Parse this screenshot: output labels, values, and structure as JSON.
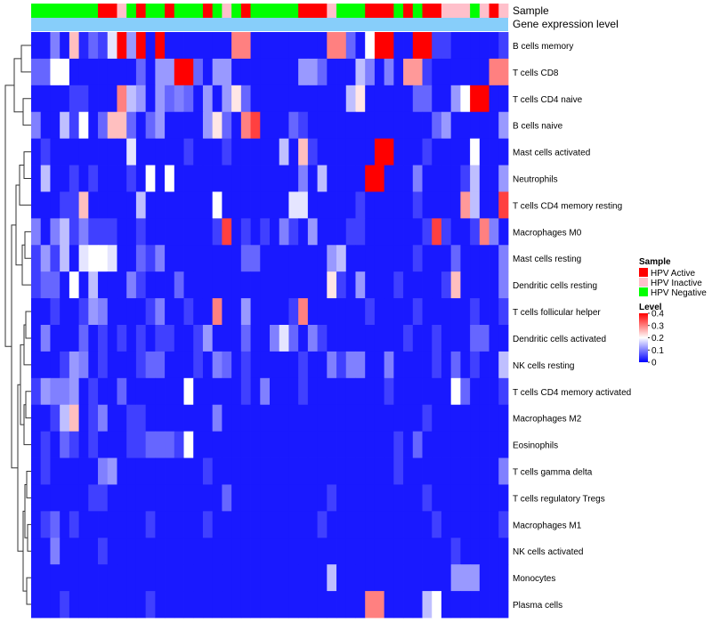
{
  "chart_data": {
    "type": "heatmap",
    "annotation_track_labels": [
      "Sample",
      "Gene expression level"
    ],
    "rows": [
      "B cells memory",
      "T cells CD8",
      "T cells CD4 naive",
      "B cells naive",
      "Mast cells activated",
      "Neutrophils",
      "T cells CD4 memory resting",
      "Macrophages M0",
      "Mast cells resting",
      "Dendritic cells resting",
      "T cells follicular helper",
      "Dendritic cells activated",
      "NK cells resting",
      "T cells CD4 memory activated",
      "Macrophages M2",
      "Eosinophils",
      "T cells gamma delta",
      "T cells regulatory  Tregs",
      "Macrophages M1",
      "NK cells activated",
      "Monocytes",
      "Plasma cells"
    ],
    "sample_groups": [
      "Negative",
      "Negative",
      "Negative",
      "Negative",
      "Negative",
      "Negative",
      "Negative",
      "Active",
      "Active",
      "Inactive",
      "Negative",
      "Active",
      "Negative",
      "Negative",
      "Active",
      "Negative",
      "Negative",
      "Negative",
      "Active",
      "Negative",
      "Inactive",
      "Negative",
      "Active",
      "Negative",
      "Negative",
      "Negative",
      "Negative",
      "Negative",
      "Active",
      "Active",
      "Active",
      "Inactive",
      "Negative",
      "Negative",
      "Negative",
      "Active",
      "Active",
      "Active",
      "Negative",
      "Active",
      "Negative",
      "Active",
      "Active",
      "Inactive",
      "Inactive",
      "Inactive",
      "Negative",
      "Inactive",
      "Active",
      "Inactive"
    ],
    "values": [
      [
        0.02,
        0.02,
        0.1,
        0.02,
        0.25,
        0.03,
        0.08,
        0.05,
        0.18,
        0.4,
        0.12,
        0.4,
        0.02,
        0.4,
        0.02,
        0.02,
        0.02,
        0.02,
        0.02,
        0.02,
        0.02,
        0.3,
        0.3,
        0.02,
        0.02,
        0.02,
        0.02,
        0.02,
        0.02,
        0.02,
        0.02,
        0.3,
        0.3,
        0.08,
        0.02,
        0.2,
        0.4,
        0.4,
        0.02,
        0.02,
        0.4,
        0.4,
        0.05,
        0.05,
        0.02,
        0.02,
        0.02,
        0.02,
        0.02,
        0.05
      ],
      [
        0.08,
        0.08,
        0.2,
        0.2,
        0.02,
        0.02,
        0.02,
        0.02,
        0.02,
        0.02,
        0.02,
        0.08,
        0.02,
        0.12,
        0.12,
        0.4,
        0.4,
        0.08,
        0.02,
        0.12,
        0.12,
        0.02,
        0.02,
        0.02,
        0.02,
        0.02,
        0.02,
        0.02,
        0.12,
        0.12,
        0.08,
        0.02,
        0.02,
        0.02,
        0.15,
        0.1,
        0.02,
        0.1,
        0.02,
        0.28,
        0.28,
        0.05,
        0.02,
        0.02,
        0.02,
        0.02,
        0.02,
        0.02,
        0.3,
        0.3
      ],
      [
        0.02,
        0.02,
        0.02,
        0.02,
        0.05,
        0.05,
        0.02,
        0.02,
        0.02,
        0.3,
        0.15,
        0.12,
        0.02,
        0.12,
        0.08,
        0.1,
        0.08,
        0.02,
        0.12,
        0.02,
        0.12,
        0.22,
        0.08,
        0.02,
        0.02,
        0.02,
        0.02,
        0.02,
        0.02,
        0.02,
        0.02,
        0.02,
        0.02,
        0.15,
        0.22,
        0.02,
        0.02,
        0.02,
        0.02,
        0.02,
        0.08,
        0.08,
        0.02,
        0.02,
        0.12,
        0.2,
        0.4,
        0.4,
        0.02,
        0.02
      ],
      [
        0.1,
        0.02,
        0.02,
        0.15,
        0.05,
        0.2,
        0.02,
        0.08,
        0.25,
        0.25,
        0.08,
        0.02,
        0.08,
        0.12,
        0.02,
        0.02,
        0.02,
        0.02,
        0.12,
        0.22,
        0.08,
        0.02,
        0.3,
        0.35,
        0.02,
        0.02,
        0.02,
        0.08,
        0.05,
        0.02,
        0.02,
        0.02,
        0.02,
        0.02,
        0.02,
        0.02,
        0.02,
        0.02,
        0.02,
        0.02,
        0.02,
        0.02,
        0.08,
        0.12,
        0.02,
        0.02,
        0.02,
        0.02,
        0.02,
        0.12
      ],
      [
        0.02,
        0.05,
        0.02,
        0.02,
        0.02,
        0.02,
        0.02,
        0.02,
        0.02,
        0.02,
        0.18,
        0.02,
        0.02,
        0.02,
        0.02,
        0.02,
        0.05,
        0.02,
        0.02,
        0.02,
        0.05,
        0.02,
        0.02,
        0.02,
        0.02,
        0.02,
        0.15,
        0.02,
        0.25,
        0.05,
        0.02,
        0.02,
        0.02,
        0.02,
        0.02,
        0.02,
        0.4,
        0.4,
        0.02,
        0.02,
        0.02,
        0.05,
        0.02,
        0.02,
        0.02,
        0.02,
        0.2,
        0.02,
        0.02,
        0.02
      ],
      [
        0.02,
        0.15,
        0.02,
        0.02,
        0.05,
        0.02,
        0.05,
        0.02,
        0.02,
        0.02,
        0.05,
        0.02,
        0.2,
        0.02,
        0.2,
        0.02,
        0.02,
        0.02,
        0.02,
        0.02,
        0.02,
        0.02,
        0.02,
        0.02,
        0.02,
        0.02,
        0.02,
        0.02,
        0.1,
        0.02,
        0.15,
        0.02,
        0.02,
        0.02,
        0.02,
        0.4,
        0.4,
        0.02,
        0.02,
        0.02,
        0.1,
        0.02,
        0.02,
        0.02,
        0.02,
        0.05,
        0.15,
        0.02,
        0.02,
        0.12
      ],
      [
        0.02,
        0.02,
        0.02,
        0.05,
        0.05,
        0.25,
        0.02,
        0.02,
        0.02,
        0.02,
        0.02,
        0.15,
        0.02,
        0.02,
        0.02,
        0.02,
        0.02,
        0.02,
        0.02,
        0.2,
        0.02,
        0.02,
        0.02,
        0.02,
        0.02,
        0.02,
        0.02,
        0.18,
        0.18,
        0.02,
        0.02,
        0.02,
        0.02,
        0.02,
        0.05,
        0.02,
        0.02,
        0.02,
        0.02,
        0.02,
        0.05,
        0.02,
        0.02,
        0.02,
        0.02,
        0.28,
        0.15,
        0.02,
        0.02,
        0.35
      ],
      [
        0.1,
        0.02,
        0.1,
        0.15,
        0.05,
        0.1,
        0.05,
        0.05,
        0.05,
        0.02,
        0.02,
        0.05,
        0.02,
        0.02,
        0.02,
        0.02,
        0.02,
        0.02,
        0.02,
        0.05,
        0.35,
        0.02,
        0.05,
        0.02,
        0.05,
        0.02,
        0.1,
        0.05,
        0.02,
        0.12,
        0.02,
        0.02,
        0.02,
        0.05,
        0.05,
        0.02,
        0.02,
        0.02,
        0.02,
        0.02,
        0.02,
        0.05,
        0.35,
        0.05,
        0.02,
        0.02,
        0.05,
        0.3,
        0.1,
        0.02
      ],
      [
        0.05,
        0.12,
        0.05,
        0.15,
        0.02,
        0.18,
        0.2,
        0.2,
        0.18,
        0.02,
        0.02,
        0.08,
        0.05,
        0.1,
        0.02,
        0.02,
        0.02,
        0.02,
        0.02,
        0.02,
        0.02,
        0.02,
        0.08,
        0.08,
        0.02,
        0.02,
        0.02,
        0.02,
        0.02,
        0.02,
        0.02,
        0.12,
        0.15,
        0.02,
        0.02,
        0.02,
        0.02,
        0.02,
        0.02,
        0.02,
        0.05,
        0.02,
        0.02,
        0.02,
        0.08,
        0.02,
        0.02,
        0.02,
        0.02,
        0.1
      ],
      [
        0.05,
        0.08,
        0.08,
        0.02,
        0.2,
        0.02,
        0.15,
        0.02,
        0.02,
        0.02,
        0.1,
        0.05,
        0.02,
        0.02,
        0.02,
        0.08,
        0.02,
        0.02,
        0.02,
        0.02,
        0.02,
        0.02,
        0.02,
        0.02,
        0.02,
        0.02,
        0.02,
        0.02,
        0.02,
        0.02,
        0.02,
        0.22,
        0.05,
        0.02,
        0.12,
        0.02,
        0.02,
        0.02,
        0.05,
        0.02,
        0.02,
        0.02,
        0.02,
        0.05,
        0.25,
        0.02,
        0.02,
        0.02,
        0.02,
        0.1
      ],
      [
        0.02,
        0.02,
        0.05,
        0.02,
        0.02,
        0.05,
        0.12,
        0.1,
        0.02,
        0.02,
        0.02,
        0.02,
        0.05,
        0.1,
        0.02,
        0.02,
        0.05,
        0.02,
        0.02,
        0.3,
        0.02,
        0.02,
        0.12,
        0.02,
        0.02,
        0.02,
        0.02,
        0.05,
        0.3,
        0.02,
        0.02,
        0.02,
        0.02,
        0.02,
        0.02,
        0.05,
        0.02,
        0.02,
        0.02,
        0.02,
        0.05,
        0.02,
        0.02,
        0.02,
        0.02,
        0.02,
        0.05,
        0.02,
        0.02,
        0.05
      ],
      [
        0.02,
        0.1,
        0.02,
        0.02,
        0.02,
        0.08,
        0.02,
        0.05,
        0.02,
        0.05,
        0.02,
        0.05,
        0.02,
        0.05,
        0.05,
        0.02,
        0.02,
        0.05,
        0.12,
        0.02,
        0.02,
        0.02,
        0.08,
        0.02,
        0.02,
        0.1,
        0.18,
        0.08,
        0.02,
        0.1,
        0.05,
        0.02,
        0.02,
        0.02,
        0.02,
        0.02,
        0.02,
        0.02,
        0.02,
        0.05,
        0.02,
        0.02,
        0.05,
        0.02,
        0.02,
        0.02,
        0.08,
        0.08,
        0.02,
        0.02
      ],
      [
        0.02,
        0.02,
        0.02,
        0.05,
        0.12,
        0.1,
        0.02,
        0.05,
        0.02,
        0.02,
        0.02,
        0.05,
        0.08,
        0.08,
        0.02,
        0.02,
        0.02,
        0.05,
        0.02,
        0.1,
        0.08,
        0.02,
        0.05,
        0.02,
        0.02,
        0.02,
        0.02,
        0.02,
        0.05,
        0.02,
        0.02,
        0.1,
        0.05,
        0.1,
        0.1,
        0.02,
        0.02,
        0.1,
        0.02,
        0.02,
        0.02,
        0.02,
        0.05,
        0.02,
        0.08,
        0.02,
        0.05,
        0.02,
        0.02,
        0.15
      ],
      [
        0.05,
        0.12,
        0.1,
        0.1,
        0.12,
        0.02,
        0.05,
        0.02,
        0.02,
        0.08,
        0.02,
        0.02,
        0.02,
        0.02,
        0.02,
        0.02,
        0.2,
        0.02,
        0.02,
        0.02,
        0.02,
        0.02,
        0.05,
        0.02,
        0.1,
        0.02,
        0.02,
        0.02,
        0.05,
        0.02,
        0.02,
        0.02,
        0.02,
        0.02,
        0.02,
        0.02,
        0.02,
        0.05,
        0.02,
        0.02,
        0.02,
        0.02,
        0.02,
        0.02,
        0.2,
        0.08,
        0.02,
        0.02,
        0.02,
        0.05
      ],
      [
        0.02,
        0.02,
        0.05,
        0.15,
        0.25,
        0.02,
        0.05,
        0.1,
        0.02,
        0.02,
        0.05,
        0.05,
        0.02,
        0.02,
        0.02,
        0.02,
        0.02,
        0.02,
        0.02,
        0.1,
        0.02,
        0.02,
        0.02,
        0.02,
        0.02,
        0.02,
        0.02,
        0.02,
        0.02,
        0.02,
        0.02,
        0.02,
        0.02,
        0.02,
        0.02,
        0.02,
        0.02,
        0.02,
        0.02,
        0.02,
        0.02,
        0.05,
        0.02,
        0.02,
        0.02,
        0.02,
        0.02,
        0.02,
        0.02,
        0.02
      ],
      [
        0.02,
        0.05,
        0.02,
        0.08,
        0.05,
        0.02,
        0.05,
        0.02,
        0.02,
        0.02,
        0.05,
        0.05,
        0.08,
        0.08,
        0.08,
        0.05,
        0.2,
        0.02,
        0.02,
        0.02,
        0.02,
        0.02,
        0.02,
        0.02,
        0.02,
        0.02,
        0.02,
        0.02,
        0.02,
        0.02,
        0.02,
        0.02,
        0.02,
        0.02,
        0.02,
        0.02,
        0.02,
        0.02,
        0.05,
        0.02,
        0.08,
        0.02,
        0.02,
        0.02,
        0.02,
        0.02,
        0.02,
        0.02,
        0.02,
        0.02
      ],
      [
        0.02,
        0.05,
        0.02,
        0.02,
        0.02,
        0.02,
        0.02,
        0.1,
        0.12,
        0.02,
        0.02,
        0.02,
        0.02,
        0.02,
        0.02,
        0.02,
        0.02,
        0.02,
        0.05,
        0.02,
        0.02,
        0.02,
        0.02,
        0.02,
        0.02,
        0.02,
        0.02,
        0.02,
        0.02,
        0.02,
        0.02,
        0.02,
        0.02,
        0.02,
        0.02,
        0.02,
        0.02,
        0.02,
        0.05,
        0.02,
        0.02,
        0.02,
        0.02,
        0.02,
        0.02,
        0.02,
        0.02,
        0.02,
        0.02,
        0.1
      ],
      [
        0.02,
        0.02,
        0.02,
        0.02,
        0.02,
        0.02,
        0.05,
        0.05,
        0.02,
        0.02,
        0.02,
        0.02,
        0.02,
        0.02,
        0.02,
        0.02,
        0.02,
        0.02,
        0.02,
        0.02,
        0.08,
        0.02,
        0.02,
        0.02,
        0.02,
        0.02,
        0.02,
        0.02,
        0.02,
        0.02,
        0.02,
        0.05,
        0.02,
        0.02,
        0.02,
        0.02,
        0.02,
        0.02,
        0.02,
        0.02,
        0.02,
        0.05,
        0.02,
        0.02,
        0.02,
        0.02,
        0.02,
        0.02,
        0.02,
        0.02
      ],
      [
        0.02,
        0.05,
        0.08,
        0.02,
        0.05,
        0.02,
        0.02,
        0.02,
        0.02,
        0.02,
        0.02,
        0.02,
        0.05,
        0.02,
        0.02,
        0.02,
        0.02,
        0.02,
        0.05,
        0.02,
        0.02,
        0.02,
        0.02,
        0.02,
        0.02,
        0.02,
        0.02,
        0.02,
        0.02,
        0.02,
        0.05,
        0.02,
        0.02,
        0.02,
        0.02,
        0.02,
        0.02,
        0.02,
        0.02,
        0.02,
        0.02,
        0.02,
        0.05,
        0.02,
        0.02,
        0.02,
        0.02,
        0.02,
        0.02,
        0.05
      ],
      [
        0.02,
        0.02,
        0.1,
        0.02,
        0.02,
        0.02,
        0.02,
        0.05,
        0.02,
        0.02,
        0.02,
        0.02,
        0.02,
        0.02,
        0.02,
        0.02,
        0.02,
        0.02,
        0.02,
        0.02,
        0.02,
        0.02,
        0.02,
        0.02,
        0.02,
        0.02,
        0.02,
        0.02,
        0.02,
        0.02,
        0.02,
        0.02,
        0.02,
        0.02,
        0.02,
        0.02,
        0.02,
        0.02,
        0.02,
        0.02,
        0.02,
        0.02,
        0.02,
        0.02,
        0.05,
        0.02,
        0.02,
        0.02,
        0.02,
        0.02
      ],
      [
        0.02,
        0.02,
        0.02,
        0.02,
        0.02,
        0.02,
        0.02,
        0.02,
        0.02,
        0.02,
        0.02,
        0.02,
        0.02,
        0.02,
        0.02,
        0.02,
        0.02,
        0.02,
        0.02,
        0.02,
        0.02,
        0.02,
        0.02,
        0.02,
        0.02,
        0.02,
        0.02,
        0.02,
        0.02,
        0.02,
        0.02,
        0.15,
        0.02,
        0.02,
        0.02,
        0.02,
        0.02,
        0.02,
        0.02,
        0.02,
        0.02,
        0.02,
        0.02,
        0.02,
        0.12,
        0.12,
        0.12,
        0.02,
        0.02,
        0.02
      ],
      [
        0.02,
        0.02,
        0.02,
        0.05,
        0.02,
        0.02,
        0.02,
        0.02,
        0.02,
        0.02,
        0.02,
        0.02,
        0.05,
        0.02,
        0.02,
        0.02,
        0.02,
        0.02,
        0.02,
        0.02,
        0.02,
        0.02,
        0.02,
        0.02,
        0.02,
        0.02,
        0.02,
        0.02,
        0.02,
        0.02,
        0.02,
        0.02,
        0.02,
        0.02,
        0.02,
        0.3,
        0.3,
        0.02,
        0.02,
        0.02,
        0.02,
        0.15,
        0.2,
        0.02,
        0.02,
        0.02,
        0.02,
        0.02,
        0.02,
        0.02
      ]
    ],
    "legend_sample": {
      "title": "Sample",
      "entries": [
        {
          "label": "HPV Active",
          "color": "#ff0000"
        },
        {
          "label": "HPV Inactive",
          "color": "#ffc0cb"
        },
        {
          "label": "HPV Negative",
          "color": "#00ff00"
        }
      ]
    },
    "legend_level": {
      "title": "Level",
      "ticks": [
        "0.4",
        "0.3",
        "0.2",
        "0.1",
        "0"
      ],
      "range": [
        0,
        0.4
      ]
    },
    "colors": {
      "low": "#0000ff",
      "mid": "#ffffff",
      "high": "#ff0000",
      "expression_track": "#87cefa"
    },
    "axes": {
      "grid": false,
      "legend_position": "right"
    }
  }
}
